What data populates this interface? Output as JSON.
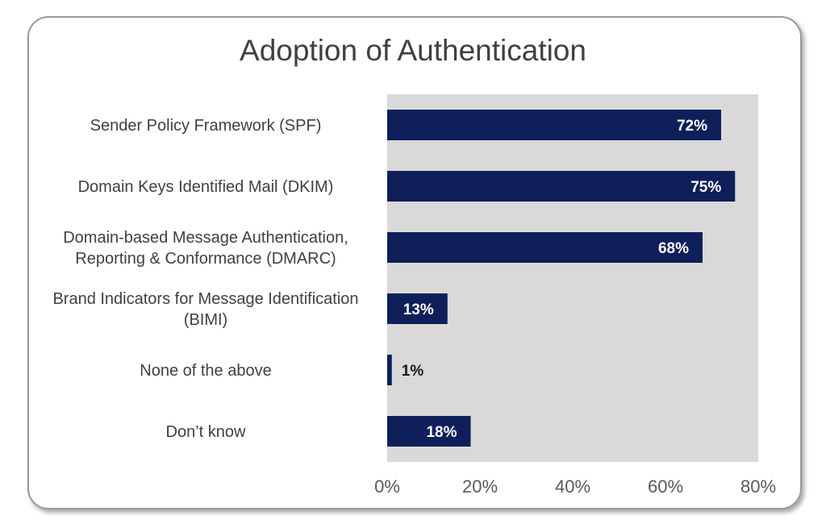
{
  "chart_data": {
    "type": "bar",
    "orientation": "horizontal",
    "title": "Adoption of Authentication",
    "categories": [
      [
        "Sender Policy Framework (SPF)"
      ],
      [
        "Domain Keys Identified Mail (DKIM)"
      ],
      [
        "Domain-based Message Authentication,",
        "Reporting & Conformance (DMARC)"
      ],
      [
        "Brand Indicators for Message Identification",
        "(BIMI)"
      ],
      [
        "None of the above"
      ],
      [
        "Don’t know"
      ]
    ],
    "values": [
      72,
      75,
      68,
      13,
      1,
      18
    ],
    "value_labels": [
      "72%",
      "75%",
      "68%",
      "13%",
      "1%",
      "18%"
    ],
    "xlim": [
      0,
      80
    ],
    "x_ticks": [
      0,
      20,
      40,
      60,
      80
    ],
    "x_tick_labels": [
      "0%",
      "20%",
      "40%",
      "60%",
      "80%"
    ],
    "grid": false,
    "bar_color": "#0f1f5a",
    "plot_background": "#d9d9d9"
  }
}
